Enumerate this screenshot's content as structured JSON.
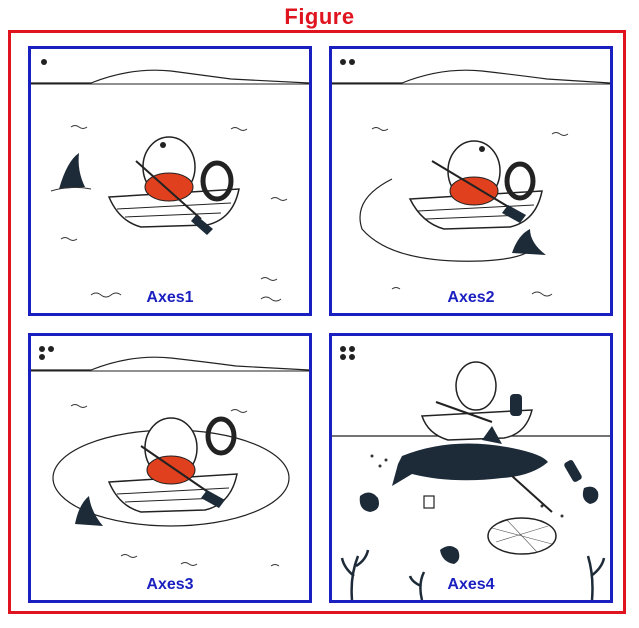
{
  "figure": {
    "title": "Figure",
    "frame_color": "#e0141e",
    "axes_color": "#1a1fbf",
    "panels": [
      {
        "label": "Axes1",
        "dots": 1
      },
      {
        "label": "Axes2",
        "dots": 2
      },
      {
        "label": "Axes3",
        "dots": 3
      },
      {
        "label": "Axes4",
        "dots": 4
      }
    ]
  }
}
